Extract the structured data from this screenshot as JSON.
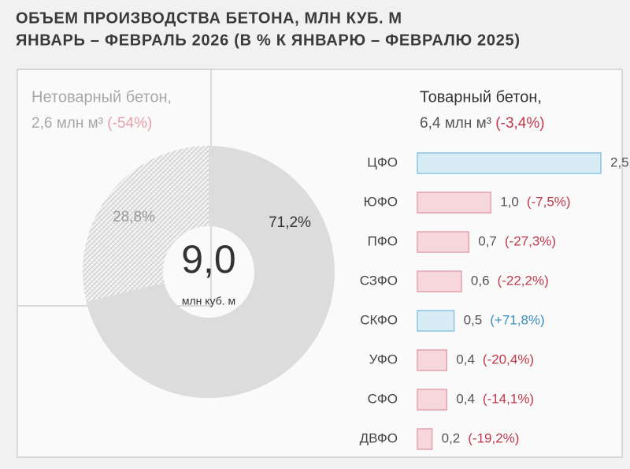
{
  "title": "ОБЪЕМ ПРОИЗВОДСТВА БЕТОНА, МЛН КУБ. М",
  "subtitle": "ЯНВАРЬ – ФЕВРАЛЬ 2026 (В % К ЯНВАРЮ – ФЕВРАЛЮ 2025)",
  "chart_data": [
    {
      "type": "pie",
      "categories": [
        "Нетоварный бетон",
        "Товарный бетон"
      ],
      "values": [
        28.8,
        71.2
      ],
      "value_labels": [
        "28,8%",
        "71,2%"
      ],
      "colors": [
        "hatch",
        "#dcdcdc"
      ],
      "total": {
        "value": 9.0,
        "label": "9,0"
      },
      "total_unit": "млн куб. м",
      "annotations": [
        {
          "name": "Нетоварный бетон,",
          "amount": "2,6 млн м³",
          "change": "(-54%)"
        },
        {
          "name": "Товарный бетон,",
          "amount": "6,4 млн м³",
          "change": "(-3,4%)"
        }
      ]
    },
    {
      "type": "barh",
      "categories": [
        "ЦФО",
        "ЮФО",
        "ПФО",
        "СЗФО",
        "СКФО",
        "УФО",
        "СФО",
        "ДВФО"
      ],
      "values": [
        2.5,
        1.0,
        0.7,
        0.6,
        0.5,
        0.4,
        0.4,
        0.2
      ],
      "value_labels": [
        "2,5",
        "1,0",
        "0,7",
        "0,6",
        "0,5",
        "0,4",
        "0,4",
        "0,2"
      ],
      "change_labels": [
        null,
        "(-7,5%)",
        "(-27,3%)",
        "(-22,2%)",
        "(+71,8%)",
        "(-20,4%)",
        "(-14,1%)",
        "(-19,2%)"
      ],
      "colors": [
        "#d8ecf6",
        "#f6d8dc",
        "#f6d8dc",
        "#f6d8dc",
        "#d8ecf6",
        "#f6d8dc",
        "#f6d8dc",
        "#f6d8dc"
      ],
      "border_colors": [
        "#8cc4e0",
        "#e3a2ab",
        "#e3a2ab",
        "#e3a2ab",
        "#8cc4e0",
        "#e3a2ab",
        "#e3a2ab",
        "#e3a2ab"
      ],
      "change_colors": [
        null,
        "#c0394a",
        "#c0394a",
        "#c0394a",
        "#3a8fbf",
        "#c0394a",
        "#c0394a",
        "#c0394a"
      ],
      "xlim": [
        0,
        2.5
      ]
    }
  ]
}
